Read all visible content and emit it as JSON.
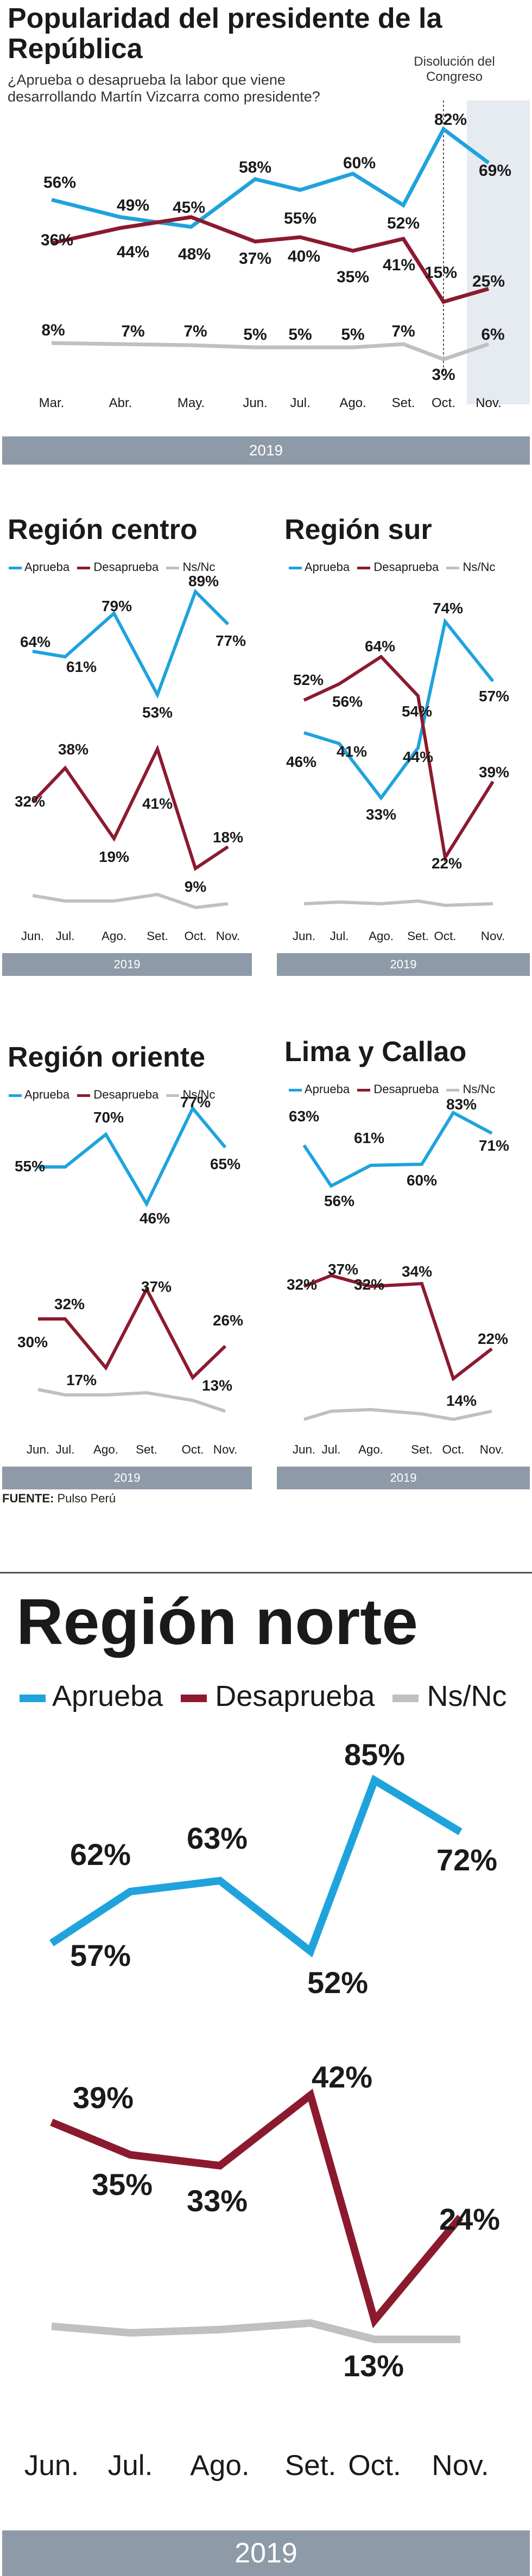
{
  "header": {
    "title_line1": "Popularidad del presidente de la",
    "title_line2": "República",
    "question_line1": "¿Aprueba o desaprueba la labor que viene",
    "question_line2": "desarrollando Martín Vizcarra como presidente?",
    "annotation_line1": "Disolución del",
    "annotation_line2": "Congreso"
  },
  "source": {
    "label": "FUENTE:",
    "text": "Pulso Perú"
  },
  "colors": {
    "aprueba": "#1fa3dc",
    "desaprueba": "#8c1a2e",
    "nsnc": "#c0c0c0",
    "year_bar": "#8e9aa8",
    "highlight": "#e6ebf2"
  },
  "chart_data": [
    {
      "id": "national",
      "type": "line",
      "title": "",
      "x": [
        "Mar.",
        "Abr.",
        "May.",
        "Jun.",
        "Jul.",
        "Ago.",
        "Set.",
        "Oct.",
        "Nov."
      ],
      "year": "2019",
      "series": [
        {
          "name": "Aprueba",
          "values": [
            56,
            49,
            45,
            58,
            55,
            60,
            52,
            82,
            69
          ]
        },
        {
          "name": "Desaprueba",
          "values": [
            36,
            44,
            48,
            37,
            40,
            35,
            41,
            15,
            25
          ]
        },
        {
          "name": "Ns/Nc",
          "values": [
            8,
            7,
            7,
            5,
            5,
            5,
            7,
            3,
            6
          ]
        }
      ]
    },
    {
      "id": "centro",
      "type": "line",
      "title": "Región centro",
      "legend": [
        "Aprueba",
        "Desaprueba",
        "Ns/Nc"
      ],
      "x": [
        "Jun.",
        "Jul.",
        "Ago.",
        "Set.",
        "Oct.",
        "Nov."
      ],
      "year": "2019",
      "series": [
        {
          "name": "Aprueba",
          "values": [
            64,
            61,
            79,
            53,
            89,
            77
          ]
        },
        {
          "name": "Desaprueba",
          "values": [
            32,
            38,
            19,
            41,
            9,
            18
          ]
        },
        {
          "name": "Ns/Nc"
        }
      ]
    },
    {
      "id": "sur",
      "type": "line",
      "title": "Región sur",
      "legend": [
        "Aprueba",
        "Desaprueba",
        "Ns/Nc"
      ],
      "x": [
        "Jun.",
        "Jul.",
        "Ago.",
        "Set.",
        "Oct.",
        "Nov."
      ],
      "year": "2019",
      "series": [
        {
          "name": "Aprueba",
          "values": [
            46,
            41,
            33,
            44,
            74,
            57
          ]
        },
        {
          "name": "Desaprueba",
          "values": [
            52,
            56,
            64,
            54,
            22,
            39
          ]
        },
        {
          "name": "Ns/Nc"
        }
      ]
    },
    {
      "id": "oriente",
      "type": "line",
      "title": "Región oriente",
      "legend": [
        "Aprueba",
        "Desaprueba",
        "Ns/Nc"
      ],
      "x": [
        "Jun.",
        "Jul.",
        "Ago.",
        "Set.",
        "Oct.",
        "Nov."
      ],
      "year": "2019",
      "series": [
        {
          "name": "Aprueba",
          "values": [
            55,
            55,
            70,
            46,
            77,
            65
          ]
        },
        {
          "name": "Desaprueba",
          "values": [
            30,
            32,
            17,
            37,
            13,
            26
          ]
        },
        {
          "name": "Ns/Nc"
        }
      ]
    },
    {
      "id": "lima",
      "type": "line",
      "title": "Lima y Callao",
      "legend": [
        "Aprueba",
        "Desaprueba",
        "Ns/Nc"
      ],
      "x": [
        "Jun.",
        "Jul.",
        "Ago.",
        "Set.",
        "Oct.",
        "Nov."
      ],
      "year": "2019",
      "series": [
        {
          "name": "Aprueba",
          "values": [
            63,
            56,
            61,
            60,
            83,
            71
          ]
        },
        {
          "name": "Desaprueba",
          "values": [
            32,
            37,
            32,
            34,
            14,
            22
          ]
        },
        {
          "name": "Ns/Nc"
        }
      ]
    },
    {
      "id": "norte",
      "type": "line",
      "title": "Región norte",
      "legend": [
        "Aprueba",
        "Desaprueba",
        "Ns/Nc"
      ],
      "x": [
        "Jun.",
        "Jul.",
        "Ago.",
        "Set.",
        "Oct.",
        "Nov."
      ],
      "year": "2019",
      "series": [
        {
          "name": "Aprueba",
          "values": [
            57,
            62,
            63,
            52,
            85,
            72
          ]
        },
        {
          "name": "Desaprueba",
          "values": [
            39,
            35,
            33,
            42,
            13,
            24
          ]
        },
        {
          "name": "Ns/Nc"
        }
      ]
    }
  ]
}
